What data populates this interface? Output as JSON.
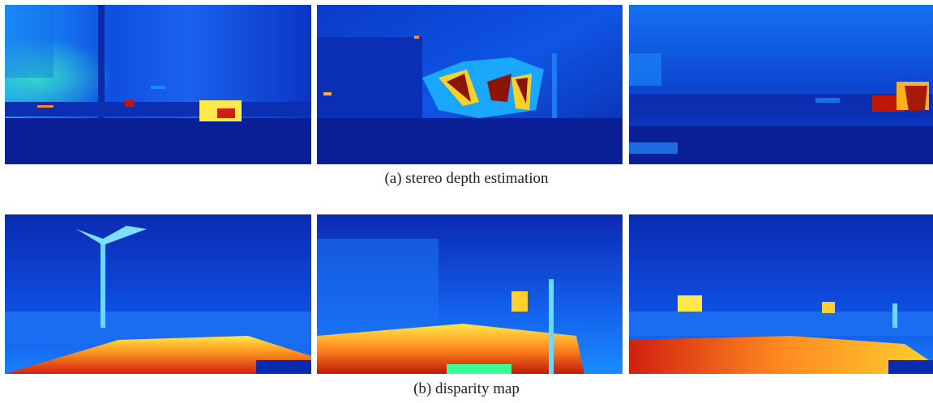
{
  "figure": {
    "rows": [
      {
        "caption": "(a)  stereo depth estimation",
        "panels": [
          {
            "content": "stereo-depth-scene-1"
          },
          {
            "content": "stereo-depth-scene-2"
          },
          {
            "content": "stereo-depth-scene-3"
          }
        ]
      },
      {
        "caption": "(b)  disparity map",
        "panels": [
          {
            "content": "disparity-scene-1"
          },
          {
            "content": "disparity-scene-2"
          },
          {
            "content": "disparity-scene-3"
          }
        ]
      }
    ],
    "colormap": [
      "#00008f",
      "#0000ff",
      "#0080ff",
      "#00ffff",
      "#80ff80",
      "#ffff00",
      "#ff8000",
      "#ff0000",
      "#800000"
    ]
  }
}
